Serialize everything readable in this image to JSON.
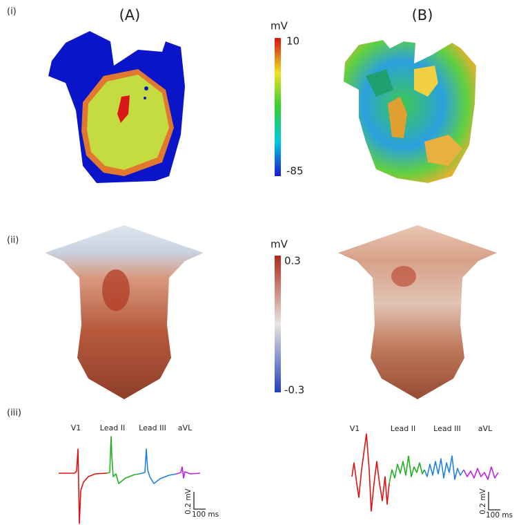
{
  "panel_labels": [
    "(i)",
    "(ii)",
    "(iii)"
  ],
  "columns": [
    "(A)",
    "(B)"
  ],
  "colorbars": [
    {
      "unit": "mV",
      "max": 10,
      "min": -85
    },
    {
      "unit": "mV",
      "max": 0.3,
      "min": -0.3
    }
  ],
  "ecg": [
    {
      "leads": [
        "V1",
        "Lead II",
        "Lead III",
        "aVL"
      ],
      "scale_voltage": "0.2 mV",
      "scale_time": "100 ms"
    },
    {
      "leads": [
        "V1",
        "Lead II",
        "Lead III",
        "aVL"
      ],
      "scale_voltage": "0.2 mV",
      "scale_time": "100 ms"
    }
  ]
}
